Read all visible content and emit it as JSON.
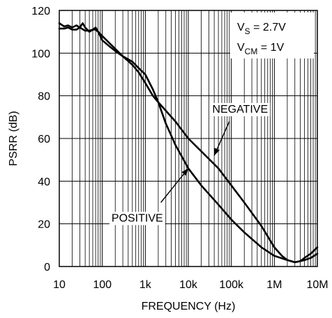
{
  "chart_data": {
    "type": "line",
    "title": "",
    "xlabel": "FREQUENCY (Hz)",
    "ylabel": "PSRR (dB)",
    "x_scale": "log",
    "xlim": [
      10,
      10000000
    ],
    "ylim": [
      0,
      120
    ],
    "grid": true,
    "x_ticks": [
      {
        "value": 10,
        "label": "10"
      },
      {
        "value": 100,
        "label": "100"
      },
      {
        "value": 1000,
        "label": "1k"
      },
      {
        "value": 10000,
        "label": "10k"
      },
      {
        "value": 100000,
        "label": "100k"
      },
      {
        "value": 1000000,
        "label": "1M"
      },
      {
        "value": 10000000,
        "label": "10M"
      }
    ],
    "y_ticks": [
      {
        "value": 0,
        "label": "0"
      },
      {
        "value": 20,
        "label": "20"
      },
      {
        "value": 40,
        "label": "40"
      },
      {
        "value": 60,
        "label": "60"
      },
      {
        "value": 80,
        "label": "80"
      },
      {
        "value": 100,
        "label": "100"
      },
      {
        "value": 120,
        "label": "120"
      }
    ],
    "conditions": [
      {
        "main": "V",
        "sub": "S",
        "rest": " = 2.7V"
      },
      {
        "main": "V",
        "sub": "CM",
        "rest": " = 1V"
      }
    ],
    "annotations": [
      {
        "text": "NEGATIVE",
        "series": "negative",
        "text_x": 160000,
        "text_y": 74,
        "arrow_from_x": 90000,
        "arrow_from_y": 68,
        "arrow_to_x": 40000,
        "arrow_to_y": 52
      },
      {
        "text": "POSITIVE",
        "series": "positive",
        "text_x": 650,
        "text_y": 23,
        "arrow_from_x": 2300,
        "arrow_from_y": 30,
        "arrow_to_x": 10000,
        "arrow_to_y": 46
      }
    ],
    "series": [
      {
        "id": "positive",
        "x": [
          10,
          13,
          16,
          20,
          25,
          30,
          40,
          50,
          60,
          70,
          80,
          100,
          150,
          200,
          300,
          500,
          700,
          1000,
          1500,
          2000,
          3000,
          5000,
          10000,
          20000,
          50000,
          100000,
          200000,
          500000,
          1000000,
          2000000,
          3000000,
          4000000,
          5000000,
          7000000,
          10000000
        ],
        "y": [
          111.5,
          111.5,
          112,
          111,
          111,
          112,
          110.5,
          110.5,
          111,
          111,
          110,
          106,
          103,
          101,
          98.5,
          96,
          93,
          90,
          83,
          77,
          67,
          57,
          46,
          38,
          29,
          22,
          16,
          9,
          5,
          3,
          2,
          2.5,
          4,
          6,
          9
        ]
      },
      {
        "id": "negative",
        "x": [
          10,
          13,
          16,
          20,
          25,
          30,
          35,
          40,
          50,
          60,
          70,
          80,
          100,
          150,
          200,
          300,
          500,
          700,
          1000,
          1500,
          2000,
          3000,
          5000,
          10000,
          20000,
          50000,
          100000,
          200000,
          500000,
          1000000,
          1500000,
          2000000,
          3000000,
          4000000,
          5000000,
          7000000,
          10000000
        ],
        "y": [
          114,
          112.5,
          113,
          112,
          113,
          112,
          114,
          112,
          110,
          111,
          112,
          110,
          108,
          104.5,
          102,
          98.5,
          94.5,
          91,
          86,
          80,
          77,
          73,
          68,
          60,
          54,
          46,
          38,
          30,
          19,
          9,
          5,
          3,
          2,
          2.5,
          3,
          4,
          6
        ]
      }
    ]
  }
}
